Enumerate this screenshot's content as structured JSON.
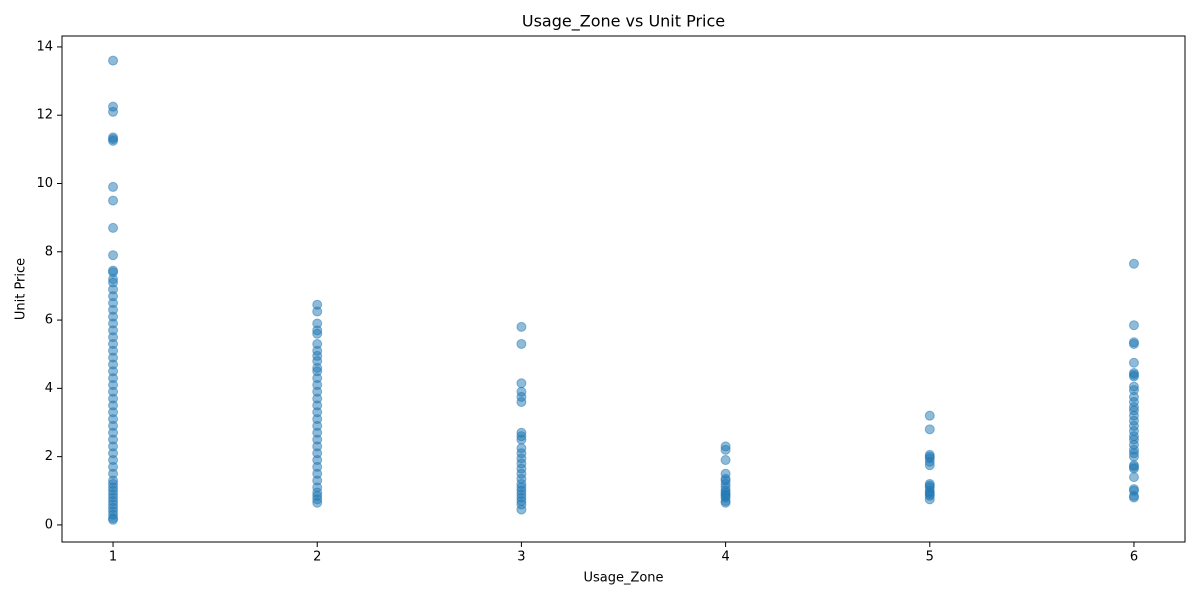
{
  "chart_data": {
    "type": "scatter",
    "title": "Usage_Zone vs Unit Price",
    "x_label": "Usage_Zone",
    "y_label": "Unit Price",
    "xlim": [
      0.75,
      6.25
    ],
    "ylim": [
      -0.5,
      14.32
    ],
    "xticks": [
      1,
      2,
      3,
      4,
      5,
      6
    ],
    "yticks": [
      0,
      2,
      4,
      6,
      8,
      10,
      12,
      14
    ],
    "grid": false,
    "series": [
      {
        "color": "#1f77b4",
        "opacity": 0.5,
        "x": [
          1,
          1,
          1,
          1,
          1,
          1,
          1,
          1,
          1,
          1,
          1,
          1,
          1,
          1,
          1,
          1,
          1,
          1,
          1,
          1,
          1,
          1,
          1,
          1,
          1,
          1,
          1,
          1,
          1,
          1,
          1,
          1,
          1,
          1,
          1,
          1,
          1,
          1,
          1,
          1,
          1,
          1,
          1,
          1,
          1,
          1,
          1,
          1,
          1,
          1,
          1,
          1,
          1,
          1,
          1,
          2,
          2,
          2,
          2,
          2,
          2,
          2,
          2,
          2,
          2,
          2,
          2,
          2,
          2,
          2,
          2,
          2,
          2,
          2,
          2,
          2,
          2,
          2,
          2,
          2,
          2,
          2,
          2,
          2,
          2,
          2,
          2,
          3,
          3,
          3,
          3,
          3,
          3,
          3,
          3,
          3,
          3,
          3,
          3,
          3,
          3,
          3,
          3,
          3,
          3,
          3,
          3,
          3,
          3,
          3,
          3,
          4,
          4,
          4,
          4,
          4,
          4,
          4,
          4,
          4,
          4,
          4,
          4,
          4,
          4,
          4,
          5,
          5,
          5,
          5,
          5,
          5,
          5,
          5,
          5,
          5,
          5,
          5,
          5,
          5,
          5,
          6,
          6,
          6,
          6,
          6,
          6,
          6,
          6,
          6,
          6,
          6,
          6,
          6,
          6,
          6,
          6,
          6,
          6,
          6,
          6,
          6,
          6,
          6,
          6,
          6,
          6,
          6,
          6,
          6,
          6,
          6,
          6
        ],
        "values": [
          0.15,
          0.2,
          0.3,
          0.4,
          0.5,
          0.6,
          0.7,
          0.8,
          0.9,
          1.0,
          1.1,
          1.2,
          1.3,
          1.5,
          1.7,
          1.9,
          2.1,
          2.3,
          2.5,
          2.7,
          2.9,
          3.1,
          3.3,
          3.5,
          3.7,
          3.9,
          4.1,
          4.3,
          4.5,
          4.7,
          4.9,
          5.1,
          5.3,
          5.5,
          5.7,
          5.9,
          6.1,
          6.3,
          6.5,
          6.7,
          6.9,
          7.1,
          7.2,
          7.4,
          7.45,
          7.9,
          8.7,
          9.5,
          9.9,
          11.25,
          11.3,
          11.35,
          12.1,
          12.25,
          13.6,
          0.65,
          0.75,
          0.85,
          0.95,
          1.1,
          1.3,
          1.5,
          1.7,
          1.9,
          2.1,
          2.3,
          2.5,
          2.7,
          2.9,
          3.1,
          3.3,
          3.5,
          3.7,
          3.9,
          4.1,
          4.3,
          4.5,
          4.6,
          4.8,
          4.95,
          5.1,
          5.3,
          5.6,
          5.7,
          5.9,
          6.25,
          6.45,
          0.45,
          0.6,
          0.7,
          0.8,
          0.9,
          1.0,
          1.1,
          1.2,
          1.35,
          1.5,
          1.65,
          1.8,
          1.95,
          2.1,
          2.25,
          2.5,
          2.6,
          2.7,
          3.6,
          3.75,
          3.9,
          4.15,
          5.3,
          5.8,
          0.65,
          0.7,
          0.8,
          0.85,
          0.9,
          0.95,
          1.0,
          1.1,
          1.2,
          1.3,
          1.35,
          1.5,
          1.9,
          2.2,
          2.3,
          0.75,
          0.85,
          0.9,
          0.95,
          1.0,
          1.1,
          1.15,
          1.2,
          1.75,
          1.85,
          1.95,
          2.0,
          2.05,
          2.8,
          3.2,
          0.8,
          0.85,
          1.0,
          1.05,
          1.4,
          1.65,
          1.7,
          1.75,
          2.0,
          2.1,
          2.2,
          2.35,
          2.5,
          2.6,
          2.75,
          2.9,
          3.05,
          3.2,
          3.35,
          3.45,
          3.6,
          3.75,
          3.95,
          4.05,
          4.35,
          4.4,
          4.45,
          4.75,
          5.3,
          5.35,
          5.85,
          7.65
        ]
      }
    ]
  }
}
